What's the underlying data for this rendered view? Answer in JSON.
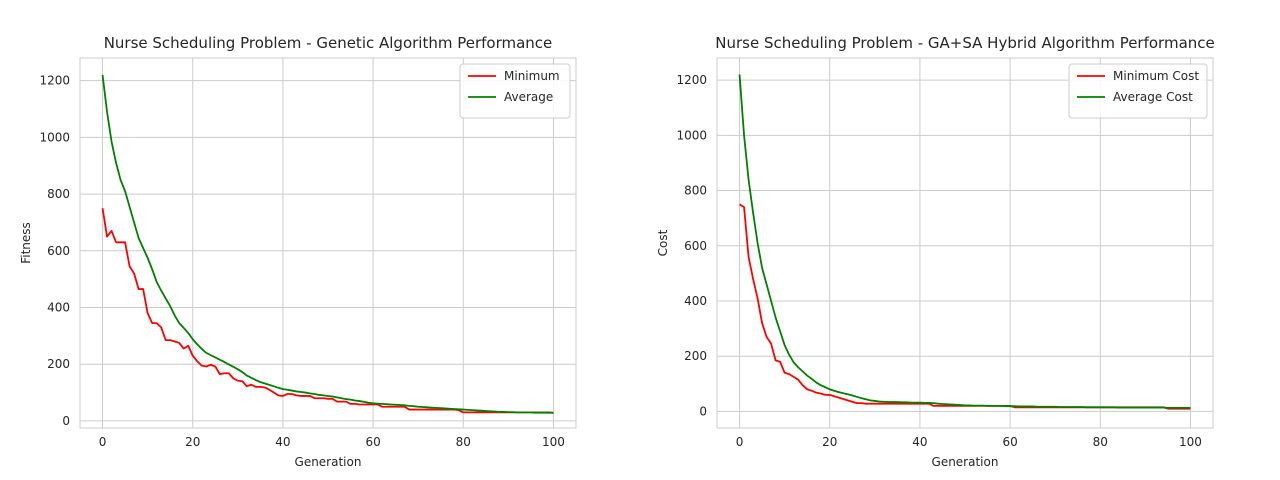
{
  "chart_data": [
    {
      "type": "line",
      "title": "Nurse Scheduling Problem - Genetic Algorithm Performance",
      "xlabel": "Generation",
      "ylabel": "Fitness",
      "xlim": [
        -5,
        105
      ],
      "ylim": [
        -25,
        1280
      ],
      "xticks": [
        0,
        20,
        40,
        60,
        80,
        100
      ],
      "yticks": [
        0,
        200,
        400,
        600,
        800,
        1000,
        1200
      ],
      "grid": true,
      "legend": "upper-right",
      "x": [
        0,
        1,
        2,
        3,
        4,
        5,
        6,
        7,
        8,
        9,
        10,
        11,
        12,
        13,
        14,
        15,
        16,
        17,
        18,
        19,
        20,
        21,
        22,
        23,
        24,
        25,
        26,
        27,
        28,
        29,
        30,
        31,
        32,
        33,
        34,
        35,
        36,
        37,
        38,
        39,
        40,
        41,
        42,
        43,
        44,
        45,
        46,
        47,
        48,
        49,
        50,
        51,
        52,
        53,
        54,
        55,
        56,
        57,
        58,
        59,
        60,
        61,
        62,
        63,
        64,
        65,
        66,
        67,
        68,
        69,
        70,
        71,
        72,
        73,
        74,
        75,
        76,
        77,
        78,
        79,
        80,
        81,
        82,
        83,
        84,
        85,
        86,
        87,
        88,
        89,
        90,
        91,
        92,
        93,
        94,
        95,
        96,
        97,
        98,
        99,
        100
      ],
      "series": [
        {
          "name": "Minimum",
          "color": "#ff0000",
          "values": [
            750,
            650,
            670,
            630,
            630,
            630,
            545,
            520,
            465,
            465,
            380,
            345,
            345,
            330,
            285,
            285,
            280,
            275,
            255,
            265,
            230,
            210,
            195,
            192,
            198,
            192,
            165,
            168,
            168,
            150,
            142,
            140,
            122,
            128,
            120,
            120,
            118,
            110,
            100,
            90,
            88,
            95,
            95,
            90,
            88,
            88,
            88,
            80,
            80,
            80,
            78,
            78,
            68,
            68,
            68,
            60,
            60,
            58,
            58,
            58,
            58,
            58,
            50,
            50,
            50,
            50,
            50,
            50,
            40,
            40,
            40,
            40,
            40,
            40,
            40,
            40,
            40,
            40,
            40,
            38,
            30,
            30,
            30,
            30,
            30,
            30,
            30,
            30,
            30,
            30,
            30,
            30,
            30,
            30,
            30,
            30,
            30,
            30,
            30,
            30,
            28
          ]
        },
        {
          "name": "Average",
          "color": "#008000",
          "values": [
            1220,
            1090,
            985,
            910,
            850,
            810,
            755,
            700,
            645,
            610,
            575,
            535,
            490,
            460,
            432,
            405,
            372,
            345,
            328,
            310,
            288,
            270,
            254,
            240,
            232,
            224,
            216,
            208,
            199,
            191,
            182,
            172,
            160,
            152,
            144,
            137,
            132,
            127,
            122,
            117,
            112,
            110,
            107,
            104,
            102,
            100,
            97,
            95,
            92,
            90,
            88,
            86,
            83,
            80,
            77,
            75,
            72,
            70,
            67,
            64,
            62,
            61,
            60,
            59,
            58,
            57,
            56,
            55,
            53,
            52,
            50,
            49,
            48,
            47,
            46,
            45,
            44,
            43,
            42,
            41,
            40,
            39,
            38,
            37,
            36,
            35,
            34,
            33,
            32,
            32,
            31,
            31,
            30,
            30,
            30,
            30,
            29,
            29,
            29,
            29,
            29
          ]
        }
      ]
    },
    {
      "type": "line",
      "title": "Nurse Scheduling Problem - GA+SA Hybrid Algorithm Performance",
      "xlabel": "Generation",
      "ylabel": "Cost",
      "xlim": [
        -5,
        105
      ],
      "ylim": [
        -60,
        1280
      ],
      "xticks": [
        0,
        20,
        40,
        60,
        80,
        100
      ],
      "yticks": [
        0,
        200,
        400,
        600,
        800,
        1000,
        1200
      ],
      "grid": true,
      "legend": "upper-right",
      "x": [
        0,
        1,
        2,
        3,
        4,
        5,
        6,
        7,
        8,
        9,
        10,
        11,
        12,
        13,
        14,
        15,
        16,
        17,
        18,
        19,
        20,
        21,
        22,
        23,
        24,
        25,
        26,
        27,
        28,
        29,
        30,
        31,
        32,
        33,
        34,
        35,
        36,
        37,
        38,
        39,
        40,
        41,
        42,
        43,
        44,
        45,
        46,
        47,
        48,
        49,
        50,
        51,
        52,
        53,
        54,
        55,
        56,
        57,
        58,
        59,
        60,
        61,
        62,
        63,
        64,
        65,
        66,
        67,
        68,
        69,
        70,
        71,
        72,
        73,
        74,
        75,
        76,
        77,
        78,
        79,
        80,
        81,
        82,
        83,
        84,
        85,
        86,
        87,
        88,
        89,
        90,
        91,
        92,
        93,
        94,
        95,
        96,
        97,
        98,
        99,
        100
      ],
      "series": [
        {
          "name": "Minimum Cost",
          "color": "#ff0000",
          "values": [
            750,
            740,
            560,
            480,
            410,
            320,
            270,
            245,
            185,
            180,
            140,
            135,
            125,
            115,
            95,
            80,
            75,
            68,
            65,
            60,
            60,
            55,
            50,
            45,
            40,
            35,
            30,
            30,
            28,
            28,
            28,
            28,
            28,
            28,
            28,
            28,
            28,
            28,
            28,
            28,
            28,
            28,
            28,
            20,
            20,
            20,
            20,
            20,
            20,
            20,
            20,
            20,
            20,
            20,
            20,
            20,
            20,
            20,
            20,
            20,
            20,
            15,
            15,
            15,
            15,
            15,
            15,
            15,
            15,
            15,
            15,
            15,
            15,
            15,
            15,
            15,
            15,
            15,
            15,
            15,
            15,
            15,
            15,
            15,
            15,
            15,
            15,
            15,
            15,
            15,
            15,
            15,
            15,
            15,
            15,
            10,
            10,
            10,
            10,
            10,
            10
          ]
        },
        {
          "name": "Average Cost",
          "color": "#008000",
          "values": [
            1220,
            1000,
            840,
            720,
            610,
            520,
            460,
            400,
            340,
            290,
            240,
            205,
            178,
            160,
            145,
            130,
            118,
            105,
            95,
            88,
            80,
            75,
            70,
            66,
            62,
            58,
            53,
            48,
            44,
            40,
            38,
            36,
            35,
            34,
            34,
            34,
            33,
            33,
            32,
            32,
            32,
            31,
            31,
            30,
            28,
            27,
            26,
            25,
            24,
            23,
            22,
            22,
            21,
            21,
            21,
            20,
            20,
            20,
            20,
            19,
            19,
            19,
            18,
            18,
            18,
            18,
            17,
            17,
            17,
            17,
            17,
            16,
            16,
            16,
            16,
            16,
            16,
            15,
            15,
            15,
            15,
            15,
            15,
            15,
            14,
            14,
            14,
            14,
            14,
            14,
            14,
            14,
            14,
            14,
            14,
            13,
            13,
            13,
            13,
            13,
            13
          ]
        }
      ]
    }
  ]
}
